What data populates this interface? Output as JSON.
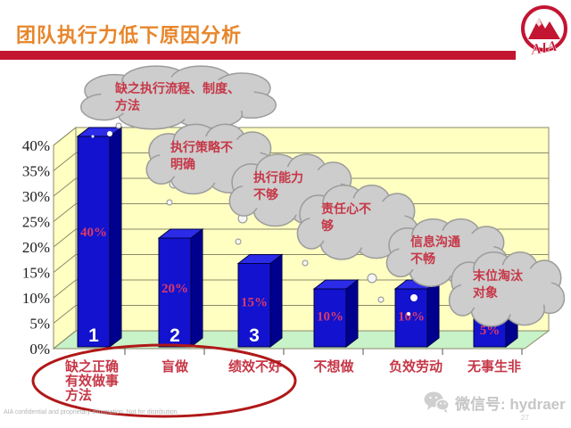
{
  "header": {
    "title": "团队执行力低下原因分析",
    "logo_text": "AIA"
  },
  "footer": {
    "disclaimer": "AIA confidential and proprietary information. Not for distribution.",
    "wechat_label": "微信号: hydraer",
    "page_number": "27"
  },
  "chart_data": {
    "type": "bar",
    "title": "",
    "xlabel": "",
    "ylabel": "",
    "categories": [
      "缺之正确有效做事方法",
      "盲做",
      "绩效不好",
      "不想做",
      "负效劳动",
      "无事生非"
    ],
    "category_display_lines": [
      [
        "缺之正确",
        "有效做事",
        "方法"
      ],
      [
        "盲做"
      ],
      [
        "绩效不好"
      ],
      [
        "不想做"
      ],
      [
        "负效劳动"
      ],
      [
        "无事生非"
      ]
    ],
    "values": [
      40,
      20,
      15,
      10,
      10,
      5
    ],
    "bar_value_labels": [
      "40%",
      "20%",
      "15%",
      "10%",
      "10%",
      "5%"
    ],
    "rank_labels": [
      "1",
      "2",
      "3"
    ],
    "y_ticks": [
      "0%",
      "5%",
      "10%",
      "15%",
      "20%",
      "25%",
      "30%",
      "35%",
      "40%"
    ],
    "ylim": [
      0,
      40
    ],
    "grid": true,
    "legend": "none",
    "cloud_annotations": [
      "缺之执行流程、制度、\n方法",
      "执行策略不\n明确",
      "执行能力\n不够",
      "责任心不\n够",
      "信息沟通\n不畅",
      "末位淘汰\n对象"
    ],
    "emphasis_note": "red oval circles the first three categories"
  },
  "colors": {
    "title_orange": "#E7862B",
    "aia_red": "#C31432",
    "wall_yellow": "#FFFFC2",
    "floor_green": "#C8F2C8",
    "bar_front_blue": "#1212CF",
    "bar_side_blue": "#00008F",
    "bar_top_blue": "#2B2BE8",
    "cloud_gray": "#CDCDCD",
    "annotation_red": "#C63747",
    "value_pink": "#DB3A66",
    "oval_red": "#B01818"
  }
}
